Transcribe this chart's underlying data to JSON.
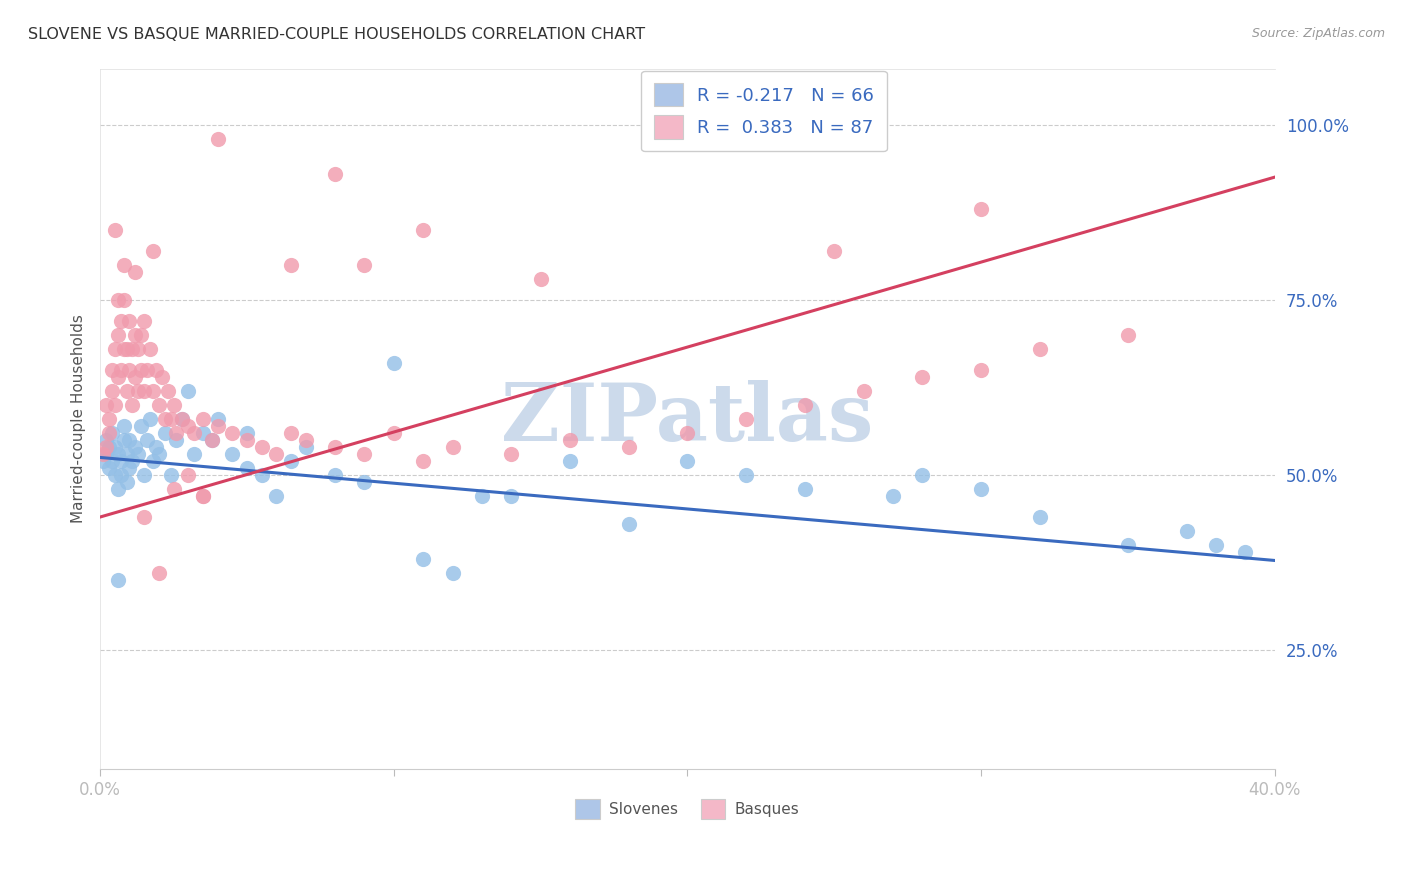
{
  "title": "SLOVENE VS BASQUE MARRIED-COUPLE HOUSEHOLDS CORRELATION CHART",
  "source": "Source: ZipAtlas.com",
  "ylabel": "Married-couple Households",
  "legend_label1": "R = -0.217   N = 66",
  "legend_label2": "R =  0.383   N = 87",
  "legend_color1": "#aec6e8",
  "legend_color2": "#f4b8c8",
  "scatter_color_slovene": "#93bfe6",
  "scatter_color_basque": "#f09aac",
  "line_color_slovene": "#3a6abf",
  "line_color_basque": "#d44060",
  "watermark": "ZIPatlas",
  "watermark_color": "#ccdaeb",
  "bottom_label1": "Slovenes",
  "bottom_label2": "Basques",
  "xlim": [
    0.0,
    0.4
  ],
  "ylim": [
    0.08,
    1.08
  ],
  "ytick_vals": [
    0.25,
    0.5,
    0.75,
    1.0
  ],
  "ytick_labels": [
    "25.0%",
    "50.0%",
    "75.0%",
    "100.0%"
  ],
  "sl_line_x0": 0.0,
  "sl_line_y0": 0.525,
  "sl_line_x1": 0.4,
  "sl_line_y1": 0.378,
  "bq_line_x0": 0.0,
  "bq_line_y0": 0.44,
  "bq_line_x1": 0.4,
  "bq_line_y1": 0.925,
  "sl_x": [
    0.001,
    0.002,
    0.002,
    0.003,
    0.003,
    0.004,
    0.004,
    0.005,
    0.005,
    0.006,
    0.006,
    0.007,
    0.007,
    0.008,
    0.008,
    0.009,
    0.009,
    0.01,
    0.01,
    0.011,
    0.012,
    0.013,
    0.014,
    0.015,
    0.016,
    0.017,
    0.018,
    0.019,
    0.02,
    0.022,
    0.024,
    0.026,
    0.028,
    0.03,
    0.032,
    0.035,
    0.038,
    0.04,
    0.045,
    0.05,
    0.055,
    0.06,
    0.065,
    0.07,
    0.08,
    0.09,
    0.1,
    0.11,
    0.12,
    0.14,
    0.16,
    0.18,
    0.2,
    0.22,
    0.24,
    0.27,
    0.3,
    0.32,
    0.35,
    0.37,
    0.006,
    0.05,
    0.13,
    0.28,
    0.38,
    0.39
  ],
  "sl_y": [
    0.52,
    0.53,
    0.55,
    0.51,
    0.54,
    0.52,
    0.56,
    0.5,
    0.54,
    0.48,
    0.53,
    0.5,
    0.52,
    0.55,
    0.57,
    0.49,
    0.53,
    0.51,
    0.55,
    0.52,
    0.54,
    0.53,
    0.57,
    0.5,
    0.55,
    0.58,
    0.52,
    0.54,
    0.53,
    0.56,
    0.5,
    0.55,
    0.58,
    0.62,
    0.53,
    0.56,
    0.55,
    0.58,
    0.53,
    0.56,
    0.5,
    0.47,
    0.52,
    0.54,
    0.5,
    0.49,
    0.66,
    0.38,
    0.36,
    0.47,
    0.52,
    0.43,
    0.52,
    0.5,
    0.48,
    0.47,
    0.48,
    0.44,
    0.4,
    0.42,
    0.35,
    0.51,
    0.47,
    0.5,
    0.4,
    0.39
  ],
  "bq_x": [
    0.001,
    0.002,
    0.002,
    0.003,
    0.003,
    0.004,
    0.004,
    0.005,
    0.005,
    0.006,
    0.006,
    0.006,
    0.007,
    0.007,
    0.008,
    0.008,
    0.009,
    0.009,
    0.01,
    0.01,
    0.011,
    0.011,
    0.012,
    0.012,
    0.013,
    0.013,
    0.014,
    0.014,
    0.015,
    0.015,
    0.016,
    0.017,
    0.018,
    0.019,
    0.02,
    0.021,
    0.022,
    0.023,
    0.024,
    0.025,
    0.026,
    0.028,
    0.03,
    0.032,
    0.035,
    0.038,
    0.04,
    0.045,
    0.05,
    0.055,
    0.06,
    0.065,
    0.07,
    0.08,
    0.09,
    0.1,
    0.11,
    0.12,
    0.14,
    0.16,
    0.18,
    0.2,
    0.22,
    0.24,
    0.26,
    0.28,
    0.3,
    0.32,
    0.35,
    0.04,
    0.08,
    0.11,
    0.25,
    0.3,
    0.035,
    0.02,
    0.015,
    0.025,
    0.03,
    0.035,
    0.065,
    0.09,
    0.15,
    0.018,
    0.012,
    0.008,
    0.005
  ],
  "bq_y": [
    0.53,
    0.54,
    0.6,
    0.56,
    0.58,
    0.62,
    0.65,
    0.6,
    0.68,
    0.64,
    0.7,
    0.75,
    0.65,
    0.72,
    0.68,
    0.75,
    0.62,
    0.68,
    0.65,
    0.72,
    0.6,
    0.68,
    0.64,
    0.7,
    0.62,
    0.68,
    0.65,
    0.7,
    0.62,
    0.72,
    0.65,
    0.68,
    0.62,
    0.65,
    0.6,
    0.64,
    0.58,
    0.62,
    0.58,
    0.6,
    0.56,
    0.58,
    0.57,
    0.56,
    0.58,
    0.55,
    0.57,
    0.56,
    0.55,
    0.54,
    0.53,
    0.56,
    0.55,
    0.54,
    0.53,
    0.56,
    0.52,
    0.54,
    0.53,
    0.55,
    0.54,
    0.56,
    0.58,
    0.6,
    0.62,
    0.64,
    0.65,
    0.68,
    0.7,
    0.98,
    0.93,
    0.85,
    0.82,
    0.88,
    0.47,
    0.36,
    0.44,
    0.48,
    0.5,
    0.47,
    0.8,
    0.8,
    0.78,
    0.82,
    0.79,
    0.8,
    0.85
  ]
}
